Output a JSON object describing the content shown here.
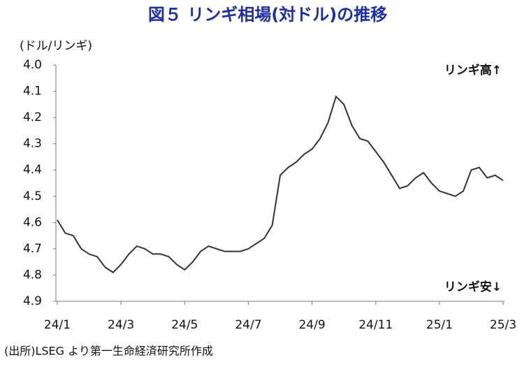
{
  "chart_data": {
    "type": "line",
    "title": "図５ リンギ相場(対ドル)の推移",
    "y_label": "(ドル/リンギ)",
    "annotations": [
      "リンギ高↑",
      "リンギ安↓"
    ],
    "source": "(出所)LSEG より第一生命経済研究所作成",
    "categories": [
      "24/1",
      null,
      null,
      null,
      null,
      null,
      null,
      null,
      "24/3",
      null,
      null,
      null,
      null,
      null,
      null,
      null,
      "24/5",
      null,
      null,
      null,
      null,
      null,
      null,
      null,
      "24/7",
      null,
      null,
      null,
      null,
      null,
      null,
      null,
      "24/9",
      null,
      null,
      null,
      null,
      null,
      null,
      null,
      "24/11",
      null,
      null,
      null,
      null,
      null,
      null,
      null,
      "25/1",
      null,
      null,
      null,
      null,
      null,
      null,
      null,
      "25/3"
    ],
    "series": [
      {
        "color": "#333333",
        "values": [
          4.59,
          4.64,
          4.65,
          4.7,
          4.72,
          4.73,
          4.77,
          4.79,
          4.76,
          4.72,
          4.69,
          4.7,
          4.72,
          4.72,
          4.73,
          4.76,
          4.78,
          4.75,
          4.71,
          4.69,
          4.7,
          4.71,
          4.71,
          4.71,
          4.7,
          4.68,
          4.66,
          4.61,
          4.42,
          4.39,
          4.37,
          4.34,
          4.32,
          4.28,
          4.22,
          4.12,
          4.15,
          4.23,
          4.28,
          4.29,
          4.33,
          4.37,
          4.42,
          4.47,
          4.46,
          4.43,
          4.41,
          4.45,
          4.48,
          4.49,
          4.5,
          4.48,
          4.4,
          4.39,
          4.43,
          4.42,
          4.44
        ]
      }
    ],
    "ylim": [
      4.9,
      4.0
    ],
    "yticks": [
      {
        "value": 4,
        "label": "4.0"
      },
      4.1,
      4.2,
      4.3,
      4.4,
      4.5,
      4.6,
      4.7,
      4.8,
      4.9
    ],
    "grid": false
  }
}
